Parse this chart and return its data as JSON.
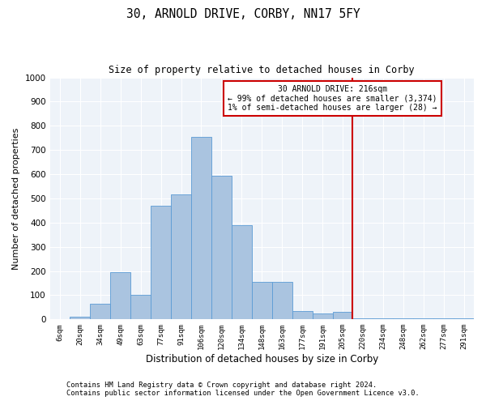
{
  "title1": "30, ARNOLD DRIVE, CORBY, NN17 5FY",
  "title2": "Size of property relative to detached houses in Corby",
  "xlabel": "Distribution of detached houses by size in Corby",
  "ylabel": "Number of detached properties",
  "categories": [
    "6sqm",
    "20sqm",
    "34sqm",
    "49sqm",
    "63sqm",
    "77sqm",
    "91sqm",
    "106sqm",
    "120sqm",
    "134sqm",
    "148sqm",
    "163sqm",
    "177sqm",
    "191sqm",
    "205sqm",
    "220sqm",
    "234sqm",
    "248sqm",
    "262sqm",
    "277sqm",
    "291sqm"
  ],
  "values": [
    0,
    10,
    65,
    195,
    100,
    470,
    515,
    755,
    595,
    390,
    155,
    155,
    35,
    25,
    30,
    5,
    5,
    5,
    5,
    5,
    5
  ],
  "bar_color": "#aac4e0",
  "bar_edge_color": "#5b9bd5",
  "vline_color": "#cc0000",
  "annotation_line1": "30 ARNOLD DRIVE: 216sqm",
  "annotation_line2": "← 99% of detached houses are smaller (3,374)",
  "annotation_line3": "1% of semi-detached houses are larger (28) →",
  "box_color": "#cc0000",
  "ylim": [
    0,
    1000
  ],
  "yticks": [
    0,
    100,
    200,
    300,
    400,
    500,
    600,
    700,
    800,
    900,
    1000
  ],
  "footer1": "Contains HM Land Registry data © Crown copyright and database right 2024.",
  "footer2": "Contains public sector information licensed under the Open Government Licence v3.0.",
  "plot_bg_color": "#eef3f9"
}
